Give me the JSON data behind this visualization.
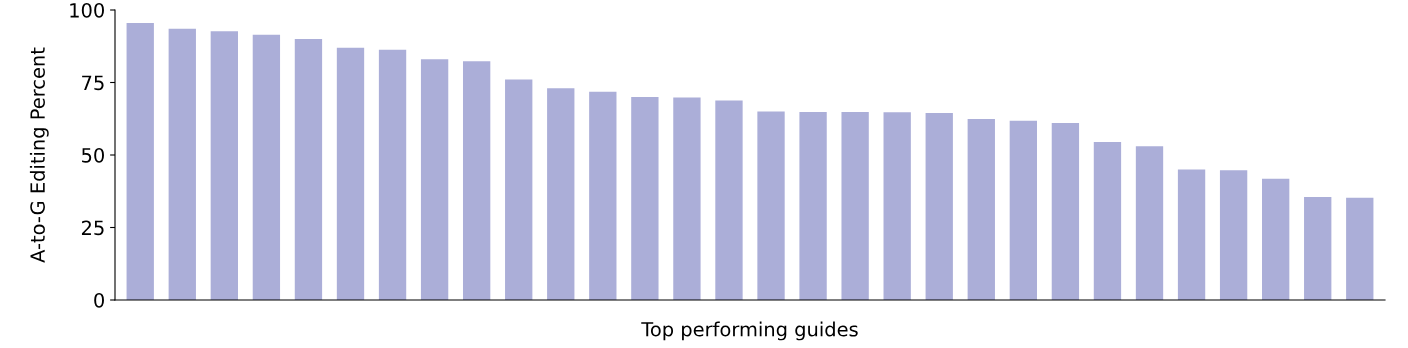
{
  "chart_data": {
    "type": "bar",
    "xlabel": "Top performing guides",
    "ylabel": "A-to-G Editing Percent",
    "categories": [
      null,
      null,
      null,
      null,
      null,
      null,
      null,
      null,
      null,
      null,
      null,
      null,
      null,
      null,
      null,
      null,
      null,
      null,
      null,
      null,
      null,
      null,
      null,
      null,
      null,
      null,
      null,
      null,
      null,
      null
    ],
    "series": [
      {
        "color": "#abaed8",
        "values": [
          95.5,
          93.5,
          92.7,
          91.5,
          90,
          87,
          86.3,
          83,
          82.3,
          76,
          73,
          71.8,
          70,
          69.8,
          68.8,
          65,
          64.8,
          64.8,
          64.7,
          64.5,
          62.4,
          61.8,
          61,
          54.5,
          53,
          45,
          44.7,
          41.8,
          35.5,
          35.3
        ]
      }
    ],
    "ylim": [
      0,
      100
    ],
    "yticks": [
      0,
      25,
      50,
      75,
      100
    ],
    "grid": false,
    "legend": false
  }
}
